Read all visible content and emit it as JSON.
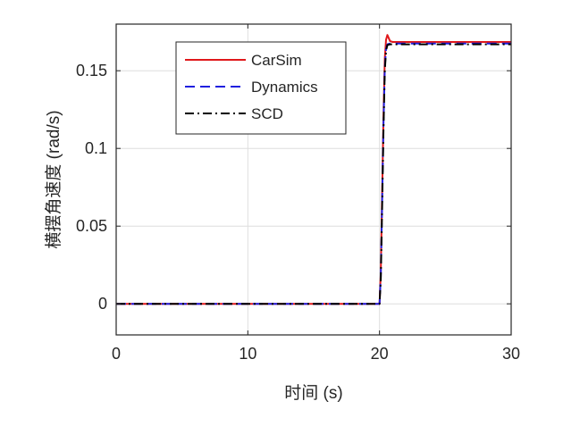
{
  "chart_data": {
    "type": "line",
    "title": "",
    "xlabel": "时间 (s)",
    "ylabel": "横摆角速度 (rad/s)",
    "xlim": [
      0,
      30
    ],
    "ylim": [
      -0.02,
      0.18
    ],
    "xticks": [
      0,
      10,
      20,
      30
    ],
    "xtick_labels": [
      "0",
      "10",
      "20",
      "30"
    ],
    "yticks": [
      0,
      0.05,
      0.1,
      0.15
    ],
    "ytick_labels": [
      "0",
      "0.05",
      "0.1",
      "0.15"
    ],
    "grid": true,
    "legend_position": "top-left inside",
    "series": [
      {
        "name": "CarSim",
        "color": "#e0181b",
        "dash": "solid",
        "x": [
          0,
          20.0,
          20.1,
          20.2,
          20.3,
          20.4,
          20.5,
          20.6,
          20.7,
          20.8,
          21.0,
          21.5,
          22,
          25,
          30
        ],
        "y": [
          0,
          0,
          0.02,
          0.07,
          0.12,
          0.158,
          0.17,
          0.173,
          0.171,
          0.169,
          0.1685,
          0.1685,
          0.1685,
          0.1685,
          0.1685
        ]
      },
      {
        "name": "Dynamics",
        "color": "#1f1fdf",
        "dash": "dashed",
        "x": [
          0,
          20.0,
          20.1,
          20.2,
          20.3,
          20.4,
          20.5,
          20.6,
          20.8,
          21.0,
          22,
          25,
          30
        ],
        "y": [
          0,
          0,
          0.018,
          0.065,
          0.115,
          0.152,
          0.164,
          0.167,
          0.1675,
          0.1675,
          0.1675,
          0.1675,
          0.1675
        ]
      },
      {
        "name": "SCD",
        "color": "#000000",
        "dash": "dashdot",
        "x": [
          0,
          20.0,
          20.1,
          20.2,
          20.3,
          20.4,
          20.5,
          20.6,
          20.8,
          21.0,
          22,
          25,
          30
        ],
        "y": [
          0,
          0,
          0.016,
          0.062,
          0.112,
          0.15,
          0.163,
          0.1665,
          0.167,
          0.167,
          0.167,
          0.167,
          0.167
        ]
      }
    ]
  }
}
